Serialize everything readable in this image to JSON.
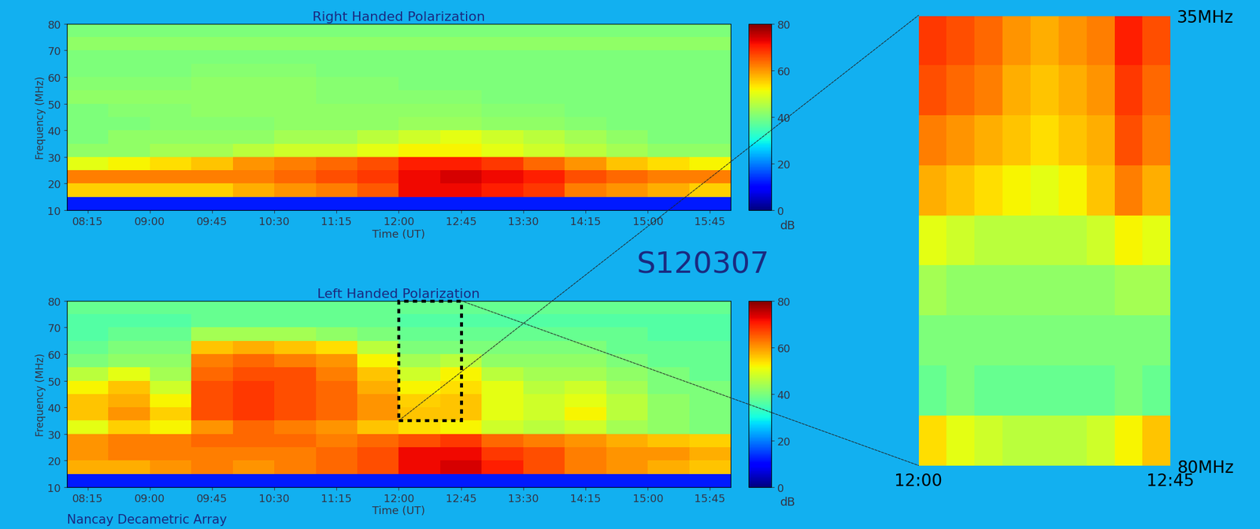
{
  "title": "S120307",
  "source": "Nancay Decametric Array",
  "chart_data": [
    {
      "type": "heatmap",
      "title": "Right Handed Polarization",
      "x_label": "Time (UT)",
      "y_label": "Frequency (MHz)",
      "xlim": [
        8.0,
        16.0
      ],
      "xticks": [
        {
          "value": 8.25,
          "label": "08:15"
        },
        {
          "value": 9.0,
          "label": "09:00"
        },
        {
          "value": 9.75,
          "label": "09:45"
        },
        {
          "value": 10.5,
          "label": "10:30"
        },
        {
          "value": 11.25,
          "label": "11:15"
        },
        {
          "value": 12.0,
          "label": "12:00"
        },
        {
          "value": 12.75,
          "label": "12:45"
        },
        {
          "value": 13.5,
          "label": "13:30"
        },
        {
          "value": 14.25,
          "label": "14:15"
        },
        {
          "value": 15.0,
          "label": "15:00"
        },
        {
          "value": 15.75,
          "label": "15:45"
        }
      ],
      "ylim": [
        10,
        80
      ],
      "yticks": [
        10,
        20,
        30,
        40,
        50,
        60,
        70,
        80
      ],
      "x_edges": [
        8.0,
        8.5,
        9.0,
        9.5,
        10.0,
        10.5,
        11.0,
        11.5,
        12.0,
        12.5,
        13.0,
        13.5,
        14.0,
        14.5,
        15.0,
        15.5,
        16.0
      ],
      "y_edges": [
        10,
        15,
        20,
        25,
        30,
        35,
        40,
        45,
        50,
        55,
        60,
        65,
        70,
        75,
        80
      ],
      "cells": [
        [
          12,
          12,
          12,
          12,
          12,
          12,
          12,
          12,
          12,
          12,
          12,
          12,
          12,
          12,
          12,
          12
        ],
        [
          55,
          55,
          55,
          55,
          58,
          60,
          62,
          65,
          72,
          72,
          70,
          68,
          62,
          60,
          58,
          55
        ],
        [
          62,
          62,
          62,
          62,
          62,
          64,
          66,
          68,
          72,
          74,
          72,
          70,
          66,
          64,
          62,
          62
        ],
        [
          50,
          52,
          54,
          56,
          60,
          62,
          64,
          66,
          70,
          70,
          68,
          64,
          60,
          56,
          54,
          52
        ],
        [
          42,
          42,
          44,
          44,
          46,
          48,
          48,
          50,
          52,
          52,
          50,
          48,
          46,
          44,
          42,
          42
        ],
        [
          40,
          42,
          42,
          42,
          42,
          44,
          44,
          46,
          48,
          50,
          48,
          46,
          44,
          42,
          40,
          40
        ],
        [
          40,
          40,
          41,
          41,
          41,
          42,
          42,
          42,
          43,
          43,
          42,
          42,
          41,
          40,
          40,
          40
        ],
        [
          40,
          41,
          41,
          42,
          42,
          42,
          42,
          42,
          42,
          42,
          41,
          41,
          40,
          40,
          40,
          40
        ],
        [
          42,
          42,
          42,
          42,
          42,
          42,
          41,
          41,
          41,
          41,
          40,
          40,
          40,
          40,
          40,
          40
        ],
        [
          41,
          41,
          41,
          42,
          42,
          42,
          41,
          41,
          40,
          40,
          40,
          40,
          40,
          40,
          40,
          40
        ],
        [
          40,
          40,
          40,
          41,
          41,
          41,
          40,
          40,
          40,
          40,
          40,
          40,
          40,
          40,
          40,
          40
        ],
        [
          40,
          40,
          40,
          40,
          40,
          40,
          40,
          40,
          40,
          40,
          40,
          40,
          40,
          40,
          40,
          40
        ],
        [
          42,
          42,
          42,
          42,
          42,
          42,
          42,
          42,
          42,
          42,
          42,
          42,
          42,
          42,
          42,
          42
        ],
        [
          40,
          40,
          40,
          40,
          40,
          40,
          40,
          40,
          40,
          40,
          40,
          40,
          40,
          40,
          40,
          40
        ]
      ],
      "colorbar": {
        "range": [
          0,
          80
        ],
        "ticks": [
          0,
          20,
          40,
          60,
          80
        ],
        "label": "dB"
      }
    },
    {
      "type": "heatmap",
      "title": "Left Handed Polarization",
      "x_label": "Time (UT)",
      "y_label": "Frequency (MHz)",
      "xlim": [
        8.0,
        16.0
      ],
      "xticks": [
        {
          "value": 8.25,
          "label": "08:15"
        },
        {
          "value": 9.0,
          "label": "09:00"
        },
        {
          "value": 9.75,
          "label": "09:45"
        },
        {
          "value": 10.5,
          "label": "10:30"
        },
        {
          "value": 11.25,
          "label": "11:15"
        },
        {
          "value": 12.0,
          "label": "12:00"
        },
        {
          "value": 12.75,
          "label": "12:45"
        },
        {
          "value": 13.5,
          "label": "13:30"
        },
        {
          "value": 14.25,
          "label": "14:15"
        },
        {
          "value": 15.0,
          "label": "15:00"
        },
        {
          "value": 15.75,
          "label": "15:45"
        }
      ],
      "ylim": [
        10,
        80
      ],
      "yticks": [
        10,
        20,
        30,
        40,
        50,
        60,
        70,
        80
      ],
      "x_edges": [
        8.0,
        8.5,
        9.0,
        9.5,
        10.0,
        10.5,
        11.0,
        11.5,
        12.0,
        12.5,
        13.0,
        13.5,
        14.0,
        14.5,
        15.0,
        15.5,
        16.0
      ],
      "y_edges": [
        10,
        15,
        20,
        25,
        30,
        35,
        40,
        45,
        50,
        55,
        60,
        65,
        70,
        75,
        80
      ],
      "cells": [
        [
          12,
          12,
          12,
          12,
          12,
          12,
          12,
          12,
          12,
          12,
          12,
          12,
          12,
          12,
          12,
          12
        ],
        [
          58,
          58,
          60,
          62,
          60,
          62,
          64,
          66,
          72,
          74,
          70,
          66,
          62,
          60,
          58,
          56
        ],
        [
          60,
          62,
          62,
          62,
          62,
          62,
          64,
          66,
          72,
          72,
          68,
          66,
          62,
          60,
          60,
          58
        ],
        [
          60,
          62,
          62,
          64,
          64,
          64,
          62,
          64,
          66,
          68,
          64,
          62,
          60,
          58,
          56,
          55
        ],
        [
          50,
          55,
          52,
          60,
          64,
          62,
          60,
          56,
          54,
          52,
          48,
          46,
          48,
          44,
          42,
          40
        ],
        [
          56,
          60,
          55,
          66,
          68,
          66,
          64,
          60,
          56,
          56,
          50,
          48,
          52,
          46,
          42,
          40
        ],
        [
          56,
          58,
          52,
          66,
          68,
          66,
          64,
          60,
          55,
          56,
          50,
          48,
          50,
          46,
          42,
          40
        ],
        [
          52,
          56,
          48,
          66,
          68,
          66,
          64,
          58,
          52,
          54,
          50,
          46,
          48,
          44,
          40,
          40
        ],
        [
          46,
          50,
          44,
          64,
          66,
          66,
          62,
          56,
          48,
          52,
          46,
          44,
          44,
          42,
          40,
          38
        ],
        [
          40,
          42,
          42,
          62,
          64,
          62,
          60,
          52,
          44,
          46,
          42,
          42,
          42,
          40,
          38,
          38
        ],
        [
          38,
          40,
          40,
          56,
          58,
          56,
          54,
          46,
          40,
          40,
          40,
          40,
          40,
          38,
          38,
          38
        ],
        [
          36,
          38,
          38,
          44,
          44,
          44,
          42,
          40,
          38,
          38,
          38,
          38,
          38,
          38,
          36,
          36
        ],
        [
          36,
          36,
          36,
          38,
          38,
          38,
          38,
          38,
          36,
          36,
          36,
          36,
          36,
          36,
          36,
          36
        ],
        [
          38,
          38,
          38,
          38,
          38,
          38,
          38,
          38,
          38,
          38,
          38,
          38,
          38,
          38,
          38,
          38
        ]
      ],
      "colorbar": {
        "range": [
          0,
          80
        ],
        "ticks": [
          0,
          20,
          40,
          60,
          80
        ],
        "label": "dB"
      }
    },
    {
      "type": "heatmap",
      "xlim": [
        12.0,
        12.75
      ],
      "xticks": [
        {
          "value": 12.0,
          "label": "12:00"
        },
        {
          "value": 12.75,
          "label": "12:45"
        }
      ],
      "ylim": [
        80,
        35
      ],
      "yticks": [
        {
          "value": 35,
          "label": "35MHz"
        },
        {
          "value": 80,
          "label": "80MHz"
        }
      ],
      "x_edges": [
        12.0,
        12.0833,
        12.1667,
        12.25,
        12.3333,
        12.4167,
        12.5,
        12.5833,
        12.6667,
        12.75
      ],
      "y_edges": [
        35,
        40,
        45,
        50,
        55,
        60,
        65,
        70,
        75,
        80
      ],
      "cells": [
        [
          68,
          66,
          64,
          60,
          58,
          60,
          62,
          70,
          66
        ],
        [
          66,
          64,
          62,
          58,
          56,
          58,
          60,
          68,
          64
        ],
        [
          62,
          60,
          58,
          56,
          54,
          56,
          58,
          66,
          62
        ],
        [
          58,
          56,
          54,
          52,
          50,
          52,
          56,
          62,
          58
        ],
        [
          50,
          48,
          46,
          46,
          46,
          46,
          48,
          52,
          50
        ],
        [
          44,
          42,
          42,
          42,
          42,
          42,
          42,
          44,
          44
        ],
        [
          40,
          40,
          40,
          40,
          40,
          40,
          40,
          40,
          40
        ],
        [
          38,
          40,
          38,
          38,
          38,
          38,
          38,
          40,
          38
        ],
        [
          54,
          50,
          48,
          46,
          46,
          46,
          48,
          52,
          56
        ]
      ],
      "color_range": [
        0,
        80
      ]
    }
  ]
}
